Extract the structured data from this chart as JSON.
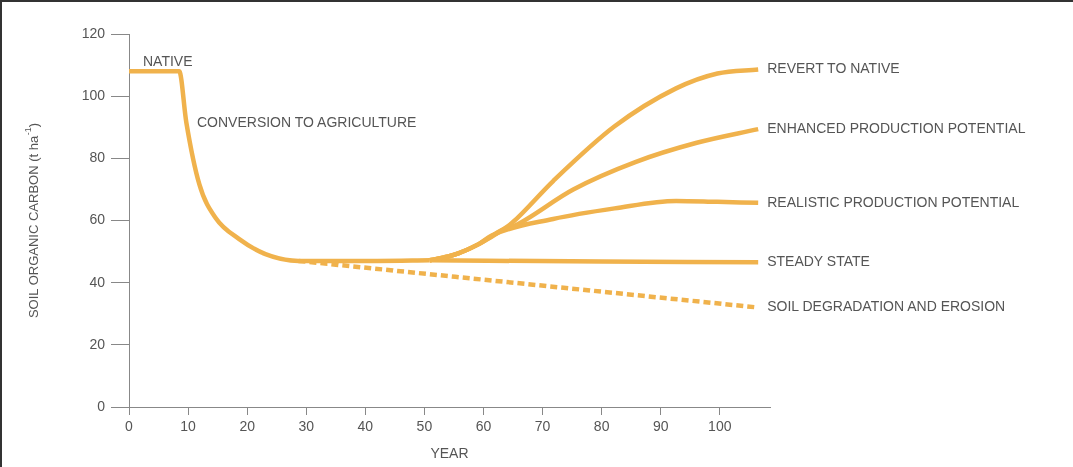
{
  "chart_data": {
    "type": "line",
    "xlabel": "YEAR",
    "ylabel": "SOIL ORGANIC CARBON (t ha$^{-1}$)",
    "xlim": [
      0,
      108.5
    ],
    "xticks": [
      0,
      10,
      20,
      30,
      40,
      50,
      60,
      70,
      80,
      90,
      100
    ],
    "ylim": [
      0,
      120
    ],
    "yticks": [
      0,
      20,
      40,
      60,
      80,
      100,
      120
    ],
    "grid": false,
    "legend": false,
    "marker": "none",
    "annotations": [
      "NATIVE",
      "CONVERSION TO AGRICULTURE"
    ],
    "series": [
      {
        "color": "#f0b24c",
        "x": [
          0,
          8.5,
          9.7,
          11.9,
          14.7,
          18.6,
          23.1,
          28.7,
          35,
          42,
          50.9
        ],
        "values": [
          108,
          108,
          91.6,
          71.7,
          60.7,
          54.1,
          49.2,
          47,
          47,
          47,
          47.2
        ]
      },
      {
        "name": "REVERT TO NATIVE",
        "color": "#f0b24c",
        "x": [
          50.9,
          55.1,
          59.2,
          63.4,
          65,
          71.8,
          82.2,
          92.6,
          99.6,
          106.5
        ],
        "values": [
          47.2,
          49,
          52.4,
          57.2,
          59.5,
          72.7,
          90.3,
          102.5,
          107.3,
          108.6
        ]
      },
      {
        "name": "ENHANCED PRODUCTION POTENTIAL",
        "color": "#f0b24c",
        "x": [
          50.9,
          55.1,
          59.2,
          63.4,
          64.8,
          75.2,
          85.7,
          96.1,
          106.5
        ],
        "values": [
          47.2,
          49,
          52.4,
          57.2,
          57.9,
          70,
          78.8,
          85,
          89.4
        ]
      },
      {
        "name": "REALISTIC PRODUCTION POTENTIAL",
        "color": "#f0b24c",
        "x": [
          50.9,
          55.1,
          59.2,
          61.4,
          71.8,
          82.2,
          92.6,
          99.6,
          106.5
        ],
        "values": [
          47.2,
          49,
          52.4,
          55.2,
          60.5,
          63.9,
          66.3,
          66,
          65.7
        ]
      },
      {
        "name": "STEADY STATE",
        "color": "#f0b24c",
        "x": [
          50.9,
          80,
          106.5
        ],
        "values": [
          47.2,
          46.8,
          46.6
        ]
      },
      {
        "name": "SOIL DEGRADATION AND EROSION",
        "color": "#f0b24c",
        "line_style": "dashed",
        "x": [
          28.7,
          106.5
        ],
        "values": [
          47,
          32
        ]
      }
    ]
  }
}
